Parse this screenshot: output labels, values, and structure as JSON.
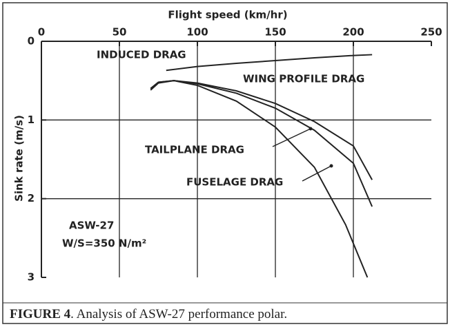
{
  "chart_data": {
    "type": "line",
    "xlabel": "Flight speed (km/hr)",
    "ylabel": "Sink rate (m/s)",
    "xlim": [
      0,
      250
    ],
    "xticks": [
      0,
      50,
      100,
      150,
      200,
      250
    ],
    "ylim": [
      0,
      3
    ],
    "yticks": [
      0,
      1,
      2,
      3
    ],
    "y_inverted": true,
    "x_axis_position": "top",
    "grid": true,
    "series": [
      {
        "name": "INDUCED DRAG",
        "color": "#222222",
        "x": [
          80,
          100,
          125,
          150,
          175,
          200,
          212
        ],
        "values": [
          0.37,
          0.32,
          0.28,
          0.245,
          0.21,
          0.18,
          0.17
        ]
      },
      {
        "name": "WING PROFILE DRAG",
        "color": "#222222",
        "x": [
          70,
          75,
          85,
          100,
          125,
          150,
          175,
          200,
          212
        ],
        "values": [
          0.6,
          0.52,
          0.5,
          0.53,
          0.63,
          0.79,
          1.02,
          1.33,
          1.76
        ]
      },
      {
        "name": "TAILPLANE DRAG",
        "color": "#222222",
        "x": [
          70,
          75,
          85,
          100,
          125,
          150,
          175,
          200,
          212
        ],
        "values": [
          0.6,
          0.52,
          0.5,
          0.54,
          0.66,
          0.85,
          1.13,
          1.55,
          2.1
        ]
      },
      {
        "name": "FUSELAGE DRAG",
        "color": "#222222",
        "x": [
          70,
          75,
          85,
          100,
          125,
          150,
          175,
          195,
          209
        ],
        "values": [
          0.62,
          0.53,
          0.5,
          0.56,
          0.76,
          1.09,
          1.6,
          2.33,
          3.0
        ]
      }
    ],
    "annotations": [
      "ASW-27",
      "W/S=350 N/m²"
    ]
  },
  "caption": {
    "label": "FIGURE 4",
    "text": ". Analysis of ASW-27 performance polar."
  }
}
